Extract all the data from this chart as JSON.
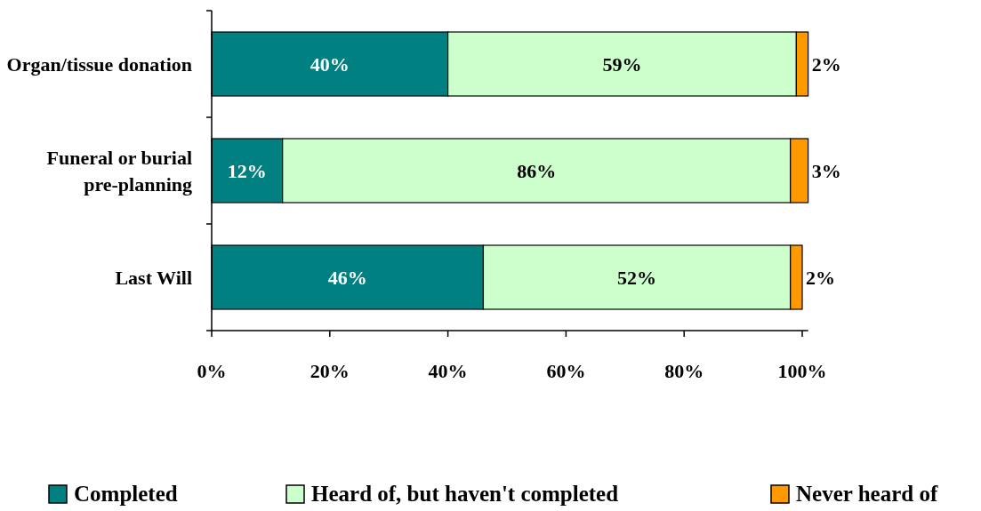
{
  "chart_data": {
    "type": "bar",
    "orientation": "horizontal",
    "stacked": true,
    "categories": [
      "Organ/tissue donation",
      "Funeral or burial pre-planning",
      "Last Will"
    ],
    "series": [
      {
        "name": "Completed",
        "color": "#008080",
        "values": [
          40,
          12,
          46
        ],
        "value_labels": [
          "40%",
          "12%",
          "46%"
        ]
      },
      {
        "name": "Heard of, but haven't completed",
        "color": "#ccffcc",
        "values": [
          59,
          86,
          52
        ],
        "value_labels": [
          "59%",
          "86%",
          "52%"
        ]
      },
      {
        "name": "Never heard of",
        "color": "#ff9900",
        "values": [
          2,
          3,
          2
        ],
        "value_labels": [
          "2%",
          "3%",
          "2%"
        ]
      }
    ],
    "xlim": [
      0,
      101
    ],
    "xticks": [
      {
        "value": 0,
        "label": "0%"
      },
      {
        "value": 20,
        "label": "20%"
      },
      {
        "value": 40,
        "label": "40%"
      },
      {
        "value": 60,
        "label": "60%"
      },
      {
        "value": 80,
        "label": "80%"
      },
      {
        "value": 100,
        "label": "100%"
      }
    ],
    "grid": false,
    "legend": "bottom"
  }
}
